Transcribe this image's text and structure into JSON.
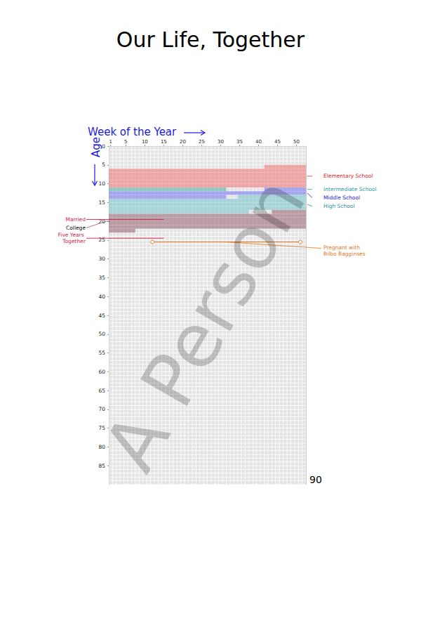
{
  "chart_data": {
    "type": "life_weeks",
    "title": "Our Life, Together",
    "watermark": "A Person",
    "x_label": "Week of the Year",
    "y_label": "Age",
    "xlim": [
      0.5,
      52.5
    ],
    "xticks": [
      1,
      5,
      10,
      15,
      20,
      25,
      30,
      35,
      40,
      45,
      50
    ],
    "ylim": [
      0,
      90
    ],
    "yticks": [
      0,
      5,
      10,
      15,
      20,
      25,
      30,
      35,
      40,
      45,
      50,
      55,
      60,
      65,
      70,
      75,
      80,
      85
    ],
    "y2lim": [
      0,
      90
    ],
    "y2ticks": [
      90
    ],
    "grid": true,
    "periods": [
      {
        "name": "Elementary School",
        "color": "#f27c7c",
        "label_color": "#dd2222",
        "side": "right",
        "start": {
          "age": 5,
          "week": 42
        },
        "end": {
          "age": 10,
          "week": 52
        }
      },
      {
        "name": "Intermediate School",
        "color": "#5fb3a8",
        "label_color": "#2a9d9d",
        "side": "right",
        "start": {
          "age": 11,
          "week": 1
        },
        "end": {
          "age": 11,
          "week": 31
        }
      },
      {
        "name": "Middle School",
        "color": "#7b7bf0",
        "label_color": "#1a1ad0",
        "side": "right",
        "start": {
          "age": 11,
          "week": 42
        },
        "end": {
          "age": 13,
          "week": 31
        }
      },
      {
        "name": "High School",
        "color": "#7ec8d0",
        "label_color": "#2a8aa0",
        "side": "right",
        "start": {
          "age": 13,
          "week": 35
        },
        "end": {
          "age": 17,
          "week": 37
        }
      },
      {
        "name": "College",
        "color": "#9c6a7a",
        "label_color": "#000000",
        "side": "left",
        "start": {
          "age": 17,
          "week": 44
        },
        "end": {
          "age": 22,
          "week": 7
        }
      }
    ],
    "events": [
      {
        "name": "Married",
        "color": "#cc1f4a",
        "age": 19,
        "week": 15
      },
      {
        "name": "Five Years Together",
        "color": "#cc1f4a",
        "age": 24,
        "week": 15
      }
    ],
    "spans": [
      {
        "name": "Pregnant with Bilbo Bagginses",
        "color": "#e0781e",
        "age": 25,
        "start_week": 12,
        "end_week": 51,
        "marker": "circle"
      }
    ]
  }
}
